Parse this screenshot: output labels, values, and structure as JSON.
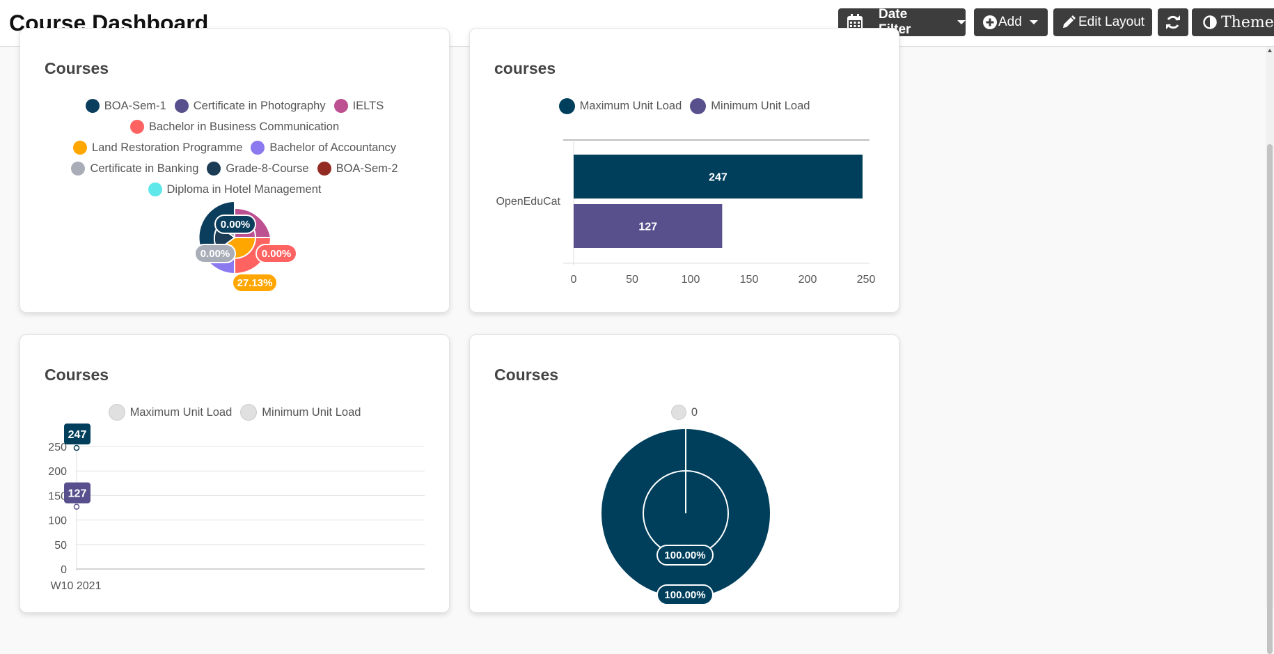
{
  "header": {
    "title": "Course Dashboard",
    "date_filter_label": "Date Filter",
    "add_label": "Add",
    "edit_layout_label": "Edit Layout",
    "theme_label": "Theme"
  },
  "cards": {
    "pie": {
      "title": "Courses"
    },
    "bar": {
      "title": "courses"
    },
    "line": {
      "title": "Courses"
    },
    "doughnut": {
      "title": "Courses"
    }
  },
  "chart_data": [
    {
      "type": "pie",
      "title": "Courses",
      "legend": [
        {
          "label": "BOA-Sem-1",
          "color": "#0b3d5c"
        },
        {
          "label": "Certificate in Photography",
          "color": "#58508d"
        },
        {
          "label": "IELTS",
          "color": "#bc5090"
        },
        {
          "label": "Bachelor in Business Communication",
          "color": "#ff6361"
        },
        {
          "label": "Land Restoration Programme",
          "color": "#ffa600"
        },
        {
          "label": "Bachelor of Accountancy",
          "color": "#8a79ef"
        },
        {
          "label": "Certificate in Banking",
          "color": "#a8adb8"
        },
        {
          "label": "Grade-8-Course",
          "color": "#1b3c54"
        },
        {
          "label": "BOA-Sem-2",
          "color": "#922b21"
        },
        {
          "label": "Diploma in Hotel Management",
          "color": "#5fe8ea"
        }
      ],
      "data_labels": [
        "0.00%",
        "0.00%",
        "0.00%",
        "27.13%"
      ]
    },
    {
      "type": "bar",
      "title": "courses",
      "orientation": "horizontal",
      "categories": [
        "OpenEduCat"
      ],
      "series": [
        {
          "name": "Maximum Unit Load",
          "values": [
            247
          ],
          "color": "#003f5c"
        },
        {
          "name": "Minimum Unit Load",
          "values": [
            127
          ],
          "color": "#58508d"
        }
      ],
      "xlim": [
        0,
        250
      ],
      "xticks": [
        "0",
        "50",
        "100",
        "150",
        "200",
        "250"
      ]
    },
    {
      "type": "line",
      "title": "Courses",
      "categories": [
        "W10 2021"
      ],
      "series": [
        {
          "name": "Maximum Unit Load",
          "values": [
            247
          ],
          "color": "#003f5c"
        },
        {
          "name": "Minimum Unit Load",
          "values": [
            127
          ],
          "color": "#58508d"
        }
      ],
      "ylim": [
        0,
        250
      ],
      "yticks": [
        "0",
        "50",
        "100",
        "150",
        "200",
        "250"
      ],
      "legend_color": "#e0e0e0"
    },
    {
      "type": "pie",
      "title": "Courses",
      "legend": [
        {
          "label": "0",
          "color": "#e0e0e0"
        }
      ],
      "slices": [
        {
          "value": 100,
          "color": "#003f5c"
        }
      ],
      "data_labels": [
        "100.00%",
        "100.00%"
      ]
    }
  ]
}
